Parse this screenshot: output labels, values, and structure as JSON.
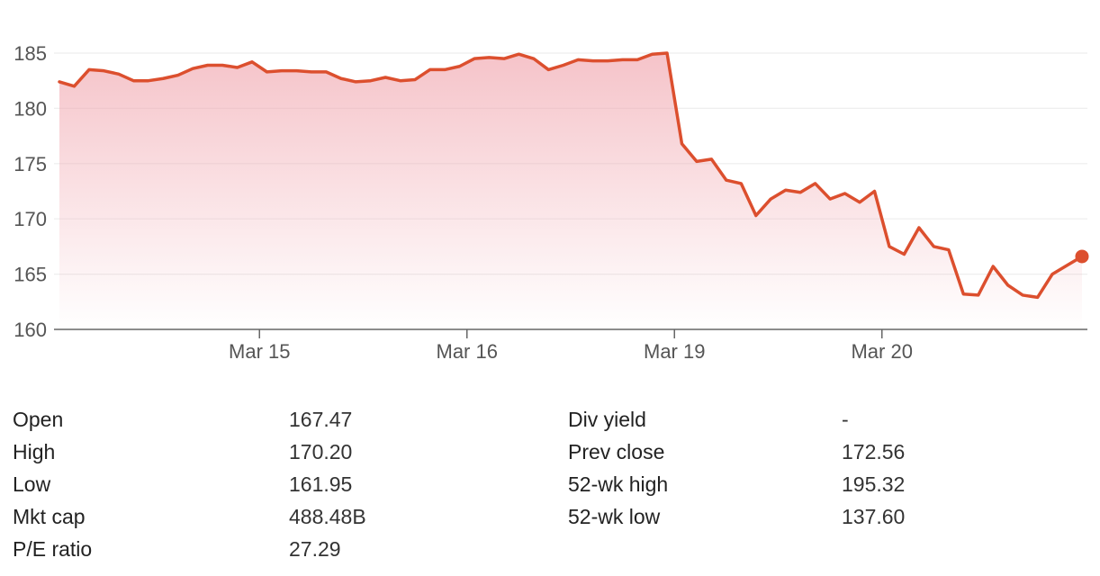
{
  "chart_data": {
    "type": "area",
    "title": "",
    "xlabel": "",
    "ylabel": "",
    "ylim": [
      160,
      186
    ],
    "yticks": [
      160,
      165,
      170,
      175,
      180,
      185
    ],
    "grid": true,
    "legend": "none",
    "x_ticks": [
      {
        "label": "Mar 15",
        "index": 13.5
      },
      {
        "label": "Mar 16",
        "index": 27.5
      },
      {
        "label": "Mar 19",
        "index": 41.5
      },
      {
        "label": "Mar 20",
        "index": 55.5
      }
    ],
    "series": [
      {
        "values": [
          182.4,
          182.0,
          183.5,
          183.4,
          183.1,
          182.5,
          182.5,
          182.7,
          183.0,
          183.6,
          183.9,
          183.9,
          183.7,
          184.2,
          183.3,
          183.4,
          183.4,
          183.3,
          183.3,
          182.7,
          182.4,
          182.5,
          182.8,
          182.5,
          182.6,
          183.5,
          183.5,
          183.8,
          184.5,
          184.6,
          184.5,
          184.9,
          184.5,
          183.5,
          183.9,
          184.4,
          184.3,
          184.3,
          184.4,
          184.4,
          184.9,
          185.0,
          176.8,
          175.2,
          175.4,
          173.5,
          173.2,
          170.3,
          171.8,
          172.6,
          172.4,
          173.2,
          171.8,
          172.3,
          171.5,
          172.5,
          167.5,
          166.8,
          169.2,
          167.5,
          167.2,
          163.2,
          163.1,
          165.7,
          164.0,
          163.1,
          162.9,
          165.0,
          165.8,
          166.6
        ]
      }
    ],
    "colors": {
      "line": "#dc4f2e",
      "fill": "#f0a3ac",
      "grid": "#eeeeee",
      "axis": "#666666"
    }
  },
  "stats": {
    "left": [
      {
        "label": "Open",
        "value": "167.47"
      },
      {
        "label": "High",
        "value": "170.20"
      },
      {
        "label": "Low",
        "value": "161.95"
      },
      {
        "label": "Mkt cap",
        "value": "488.48B"
      },
      {
        "label": "P/E ratio",
        "value": "27.29"
      }
    ],
    "right": [
      {
        "label": "Div yield",
        "value": "-"
      },
      {
        "label": "Prev close",
        "value": "172.56"
      },
      {
        "label": "52-wk high",
        "value": "195.32"
      },
      {
        "label": "52-wk low",
        "value": "137.60"
      }
    ]
  }
}
